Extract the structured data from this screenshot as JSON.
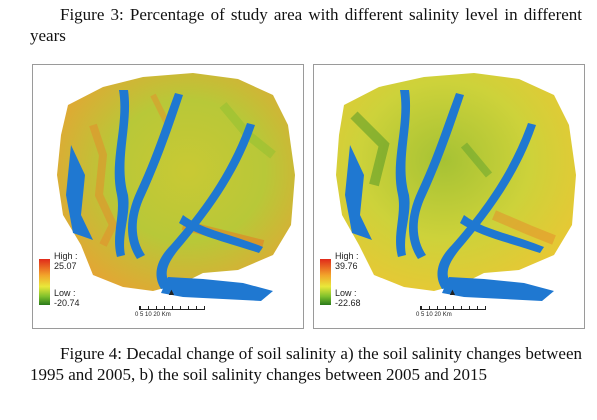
{
  "captions": {
    "figure3": "Figure 3: Percentage of study area with different salinity level in different years",
    "figure4": "Figure 4: Decadal change of soil salinity a) the soil salinity changes between 1995 and 2005, b) the soil salinity changes between 2005 and 2015"
  },
  "maps": [
    {
      "legend": {
        "high_label": "High :",
        "high_value": "25.07",
        "low_label": "Low :",
        "low_value": "-20.74"
      },
      "scale": {
        "ticks": "0   5   10          20 Km",
        "north": "N"
      }
    },
    {
      "legend": {
        "high_label": "High :",
        "high_value": "39.76",
        "low_label": "Low :",
        "low_value": "-22.68"
      },
      "scale": {
        "ticks": "0   5   10          20 Km",
        "north": "N"
      }
    }
  ],
  "colors": {
    "ramp_high": "#e02a1a",
    "ramp_mid": "#e9e83a",
    "ramp_low": "#2a7a1a",
    "water": "#1f78d1"
  }
}
